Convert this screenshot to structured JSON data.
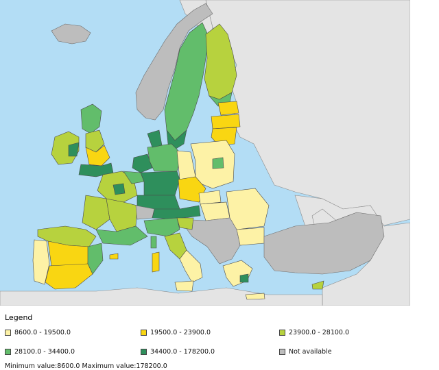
{
  "legend": {
    "title": "Legend",
    "items": [
      {
        "label": "8600.0 - 19500.0",
        "color": "#fdf2a6"
      },
      {
        "label": "19500.0 - 23900.0",
        "color": "#f9d612"
      },
      {
        "label": "23900.0 - 28100.0",
        "color": "#b7d23e"
      },
      {
        "label": "28100.0 - 34400.0",
        "color": "#62bd6b"
      },
      {
        "label": "34400.0 - 178200.0",
        "color": "#2e8f5c"
      },
      {
        "label": "Not available",
        "color": "#bdbdbd"
      }
    ],
    "note": "Minimum value:8600.0 Maximum value:178200.0"
  },
  "map": {
    "sea_color": "#b3ddf5",
    "nonmember_color": "#e4e4e4",
    "border_color": "#5a5a5a"
  }
}
